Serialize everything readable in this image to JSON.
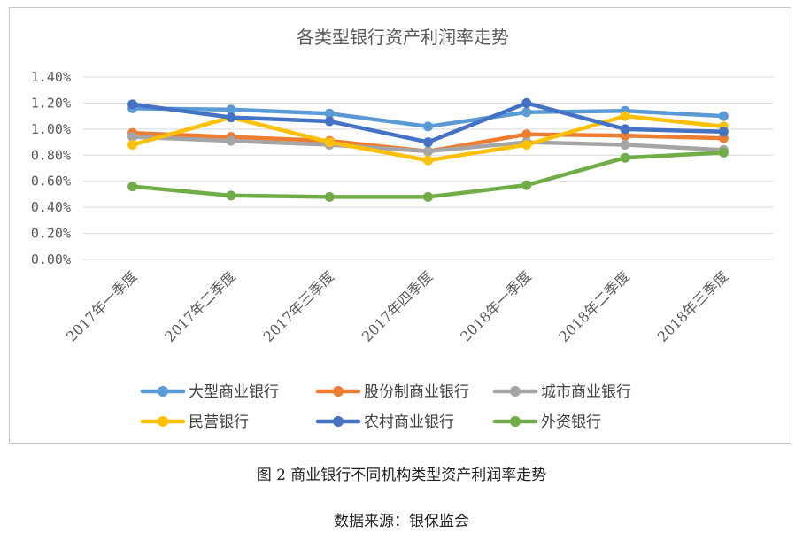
{
  "chart_data": {
    "type": "line",
    "title": "各类型银行资产利润率走势",
    "categories": [
      "2017年一季度",
      "2017年二季度",
      "2017年三季度",
      "2017年四季度",
      "2018年一季度",
      "2018年二季度",
      "2018年三季度"
    ],
    "y_ticks": [
      "0.00%",
      "0.20%",
      "0.40%",
      "0.60%",
      "0.80%",
      "1.00%",
      "1.20%",
      "1.40%"
    ],
    "ylim": [
      0,
      1.4
    ],
    "y_unit": "%",
    "grid": true,
    "legend_position": "bottom",
    "series": [
      {
        "name": "大型商业银行",
        "color": "#5B9BD5",
        "values": [
          1.16,
          1.15,
          1.12,
          1.02,
          1.13,
          1.14,
          1.1
        ]
      },
      {
        "name": "股份制商业银行",
        "color": "#ED7D31",
        "values": [
          0.97,
          0.94,
          0.91,
          0.83,
          0.96,
          0.95,
          0.93
        ]
      },
      {
        "name": "城市商业银行",
        "color": "#A5A5A5",
        "values": [
          0.94,
          0.91,
          0.88,
          0.83,
          0.9,
          0.88,
          0.84
        ]
      },
      {
        "name": "民营银行",
        "color": "#FFC000",
        "values": [
          0.88,
          1.09,
          0.9,
          0.76,
          0.88,
          1.1,
          1.02
        ]
      },
      {
        "name": "农村商业银行",
        "color": "#4472C4",
        "values": [
          1.19,
          1.09,
          1.06,
          0.9,
          1.2,
          1.0,
          0.98
        ]
      },
      {
        "name": "外资银行",
        "color": "#70AD47",
        "values": [
          0.56,
          0.49,
          0.48,
          0.48,
          0.57,
          0.78,
          0.82
        ]
      }
    ]
  },
  "figure_caption": "图 2  商业银行不同机构类型资产利润率走势",
  "source_caption": "数据来源：银保监会"
}
